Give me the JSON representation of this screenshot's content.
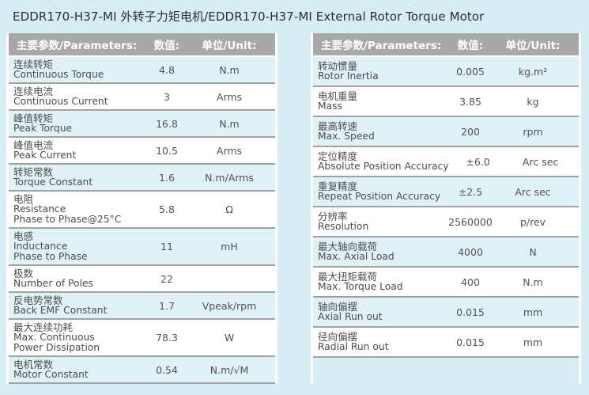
{
  "title": "EDDR170-H37-MI 外转子力矩电机/EDDR170-H37-MI External Rotor Torque Motor",
  "colors": {
    "page_background": "#d7edf5",
    "header_background": "#a8a8a8",
    "header_text": "#ffffff",
    "row_alt_background": "#e0f1f8",
    "row_background": "#ffffff",
    "separator": "#a2a2a2",
    "text": "#4c4c4c"
  },
  "tables": [
    {
      "headers": {
        "param": "主要参数/Parameters:",
        "value": "数值:",
        "unit": "单位/Unit:"
      },
      "rows": [
        {
          "zh": "连续转矩",
          "en": "Continuous Torque",
          "value": "4.8",
          "unit": "N.m"
        },
        {
          "zh": "连续电流",
          "en": "Continuous Current",
          "value": "3",
          "unit": "Arms"
        },
        {
          "zh": "峰值转矩",
          "en": "Peak Torque",
          "value": "16.8",
          "unit": "N.m"
        },
        {
          "zh": "峰值电流",
          "en": "Peak Current",
          "value": "10.5",
          "unit": "Arms"
        },
        {
          "zh": "转矩常数",
          "en": "Torque Constant",
          "value": "1.6",
          "unit": "N.m/Arms"
        },
        {
          "zh": "电阻",
          "en": "Resistance",
          "en2": "Phase to Phase@25°C",
          "value": "5.8",
          "unit": "Ω"
        },
        {
          "zh": "电感",
          "en": "Inductance",
          "en2": "Phase to Phase",
          "value": "11",
          "unit": "mH"
        },
        {
          "zh": "极数",
          "en": "Number of Poles",
          "value": "22",
          "unit": ""
        },
        {
          "zh": "反电势常数",
          "en": "Back EMF Constant",
          "value": "1.7",
          "unit": "Vpeak/rpm"
        },
        {
          "zh": "最大连续功耗",
          "en": "Max. Continuous",
          "en2": "Power Dissipation",
          "value": "78.3",
          "unit": "W"
        },
        {
          "zh": "电机常数",
          "en": "Motor Constant",
          "value": "0.54",
          "unit": "N.m/√M"
        }
      ]
    },
    {
      "headers": {
        "param": "主要参数/Parameters:",
        "value": "数值:",
        "unit": "单位/Unit:"
      },
      "rows": [
        {
          "zh": "转动惯量",
          "en": "Rotor Inertia",
          "value": "0.005",
          "unit": "kg.m²"
        },
        {
          "zh": "电机重量",
          "en": "Mass",
          "value": "3.85",
          "unit": "kg"
        },
        {
          "zh": "最高转速",
          "en": "Max. Speed",
          "value": "200",
          "unit": "rpm"
        },
        {
          "zh": "定位精度",
          "en": "Absolute Position Accuracy",
          "value": "±6.0",
          "unit": "Arc sec"
        },
        {
          "zh": "重复精度",
          "en": "Repeat Position Accuracy",
          "value": "±2.5",
          "unit": "Arc sec"
        },
        {
          "zh": "分辨率",
          "en": "Resolution",
          "value": "2560000",
          "unit": "p/rev"
        },
        {
          "zh": "最大轴向载荷",
          "en": "Max. Axial Load",
          "value": "4000",
          "unit": "N"
        },
        {
          "zh": "最大扭矩载荷",
          "en": "Max. Torque Load",
          "value": "400",
          "unit": "N.m"
        },
        {
          "zh": "轴向偏摆",
          "en": "Axial Run out",
          "value": "0.015",
          "unit": "mm"
        },
        {
          "zh": "径向偏摆",
          "en": "Radial Run out",
          "value": "0.015",
          "unit": "mm"
        }
      ]
    }
  ]
}
